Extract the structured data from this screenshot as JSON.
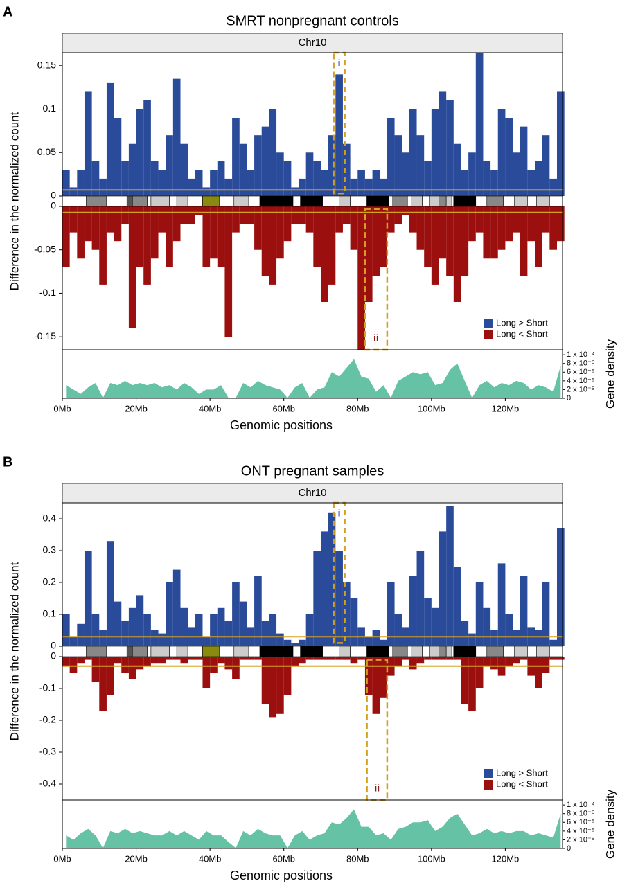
{
  "chart_data": [
    {
      "type": "bar",
      "panel": "A",
      "title": "SMRT nonpregnant controls",
      "strip": "Chr10",
      "y_label": "Difference in the normalized count",
      "x_label": "Genomic positions",
      "xlim": [
        0,
        135.5
      ],
      "xticks": [
        {
          "value": 0,
          "label": "0Mb"
        },
        {
          "value": 20,
          "label": "20Mb"
        },
        {
          "value": 40,
          "label": "40Mb"
        },
        {
          "value": 60,
          "label": "60Mb"
        },
        {
          "value": 80,
          "label": "80Mb"
        },
        {
          "value": 100,
          "label": "100Mb"
        },
        {
          "value": 120,
          "label": "120Mb"
        }
      ],
      "ylim": [
        -0.165,
        0.165
      ],
      "yticks": [
        0.15,
        0.1,
        0.05,
        0,
        -0.05,
        -0.1,
        -0.15
      ],
      "thresholds": [
        0.007,
        -0.007
      ],
      "threshold_color": "#d4a020",
      "x": [
        0,
        2,
        4,
        6,
        8,
        10,
        12,
        14,
        16,
        18,
        20,
        22,
        24,
        26,
        28,
        30,
        32,
        34,
        36,
        38,
        40,
        42,
        44,
        46,
        48,
        50,
        52,
        54,
        56,
        58,
        60,
        62,
        64,
        66,
        68,
        70,
        72,
        74,
        76,
        78,
        80,
        82,
        84,
        86,
        88,
        90,
        92,
        94,
        96,
        98,
        100,
        102,
        104,
        106,
        108,
        110,
        112,
        114,
        116,
        118,
        120,
        122,
        124,
        126,
        128,
        130,
        132,
        134
      ],
      "series": [
        {
          "name": "Long > Short",
          "color": "#2a4a9a",
          "values": [
            0.03,
            0.01,
            0.03,
            0.12,
            0.04,
            0.02,
            0.13,
            0.09,
            0.04,
            0.06,
            0.1,
            0.11,
            0.04,
            0.03,
            0.07,
            0.135,
            0.06,
            0.02,
            0.03,
            0.01,
            0.03,
            0.04,
            0.02,
            0.09,
            0.06,
            0.03,
            0.07,
            0.08,
            0.1,
            0.05,
            0.04,
            0.01,
            0.02,
            0.05,
            0.04,
            0.03,
            0.07,
            0.14,
            0.06,
            0.02,
            0.03,
            0.02,
            0.03,
            0.02,
            0.09,
            0.07,
            0.05,
            0.1,
            0.07,
            0.04,
            0.1,
            0.12,
            0.11,
            0.06,
            0.03,
            0.05,
            0.165,
            0.04,
            0.03,
            0.1,
            0.09,
            0.05,
            0.08,
            0.03,
            0.04,
            0.07,
            0.02,
            0.12
          ]
        },
        {
          "name": "Long < Short",
          "color": "#9b0f0f",
          "values": [
            -0.07,
            -0.03,
            -0.06,
            -0.04,
            -0.05,
            -0.09,
            -0.03,
            -0.04,
            -0.02,
            -0.14,
            -0.07,
            -0.09,
            -0.06,
            -0.03,
            -0.07,
            -0.04,
            -0.02,
            -0.02,
            -0.01,
            -0.07,
            -0.06,
            -0.07,
            -0.15,
            -0.03,
            -0.02,
            -0.02,
            -0.05,
            -0.08,
            -0.09,
            -0.06,
            -0.04,
            -0.02,
            -0.02,
            -0.03,
            -0.07,
            -0.11,
            -0.09,
            -0.03,
            -0.02,
            -0.05,
            -0.165,
            -0.11,
            -0.08,
            -0.07,
            -0.03,
            -0.02,
            -0.01,
            -0.03,
            -0.05,
            -0.07,
            -0.09,
            -0.06,
            -0.08,
            -0.11,
            -0.08,
            -0.04,
            -0.03,
            -0.06,
            -0.06,
            -0.05,
            -0.04,
            -0.03,
            -0.08,
            -0.04,
            -0.07,
            -0.03,
            -0.05,
            -0.04
          ]
        }
      ],
      "highlights": [
        {
          "label": "i",
          "color": "#2233aa",
          "xlim": [
            73.5,
            76.5
          ],
          "ylim": [
            0.003,
            0.165
          ]
        },
        {
          "label": "ii",
          "color": "#8b1a1a",
          "xlim": [
            82,
            88
          ],
          "ylim": [
            -0.003,
            -0.165
          ]
        }
      ],
      "density": {
        "label": "Gene density",
        "color": "#66c2a5",
        "ylim": [
          0,
          0.000105
        ],
        "yticks": [
          0,
          {
            "value": 2e-05,
            "label": "2 x 10⁻⁵"
          },
          {
            "value": 4e-05,
            "label": "4 x 10⁻⁵"
          },
          {
            "value": 6e-05,
            "label": "6 x 10⁻⁵"
          },
          {
            "value": 8e-05,
            "label": "8 x 10⁻⁵"
          },
          {
            "value": 0.0001,
            "label": "1 x 10⁻⁴"
          }
        ],
        "values": [
          3e-05,
          2e-05,
          1e-05,
          2.5e-05,
          3.5e-05,
          1e-06,
          3.5e-05,
          3e-05,
          4e-05,
          3e-05,
          3.5e-05,
          3e-05,
          3.5e-05,
          2.5e-05,
          3e-05,
          2e-05,
          3.5e-05,
          2.5e-05,
          1e-05,
          2e-05,
          2e-05,
          3e-05,
          1e-06,
          1e-06,
          3.5e-05,
          2.5e-05,
          4e-05,
          3e-05,
          2.5e-05,
          2e-05,
          1e-06,
          2.5e-05,
          3.5e-05,
          1e-06,
          2e-05,
          2.5e-05,
          6e-05,
          5e-05,
          7e-05,
          9e-05,
          5e-05,
          4.5e-05,
          1.5e-05,
          3e-05,
          1e-06,
          4e-05,
          5e-05,
          6e-05,
          5.5e-05,
          6e-05,
          3e-05,
          3.5e-05,
          6.5e-05,
          8e-05,
          4e-05,
          1e-06,
          3e-05,
          4e-05,
          2.5e-05,
          3.5e-05,
          3e-05,
          4e-05,
          3.5e-05,
          2e-05,
          3e-05,
          2.5e-05,
          1.5e-05,
          7.5e-05
        ]
      }
    },
    {
      "type": "bar",
      "panel": "B",
      "title": "ONT pregnant samples",
      "strip": "Chr10",
      "y_label": "Difference in the normalized count",
      "x_label": "Genomic positions",
      "xlim": [
        0,
        135.5
      ],
      "xticks": [
        {
          "value": 0,
          "label": "0Mb"
        },
        {
          "value": 20,
          "label": "20Mb"
        },
        {
          "value": 40,
          "label": "40Mb"
        },
        {
          "value": 60,
          "label": "60Mb"
        },
        {
          "value": 80,
          "label": "80Mb"
        },
        {
          "value": 100,
          "label": "100Mb"
        },
        {
          "value": 120,
          "label": "120Mb"
        }
      ],
      "ylim": [
        -0.45,
        0.45
      ],
      "yticks": [
        0.4,
        0.3,
        0.2,
        0.1,
        0,
        -0.1,
        -0.2,
        -0.3,
        -0.4
      ],
      "thresholds": [
        0.03,
        -0.03
      ],
      "threshold_color": "#d4a020",
      "x": [
        0,
        2,
        4,
        6,
        8,
        10,
        12,
        14,
        16,
        18,
        20,
        22,
        24,
        26,
        28,
        30,
        32,
        34,
        36,
        38,
        40,
        42,
        44,
        46,
        48,
        50,
        52,
        54,
        56,
        58,
        60,
        62,
        64,
        66,
        68,
        70,
        72,
        74,
        76,
        78,
        80,
        82,
        84,
        86,
        88,
        90,
        92,
        94,
        96,
        98,
        100,
        102,
        104,
        106,
        108,
        110,
        112,
        114,
        116,
        118,
        120,
        122,
        124,
        126,
        128,
        130,
        132,
        134
      ],
      "series": [
        {
          "name": "Long > Short",
          "color": "#2a4a9a",
          "values": [
            0.1,
            0.03,
            0.07,
            0.3,
            0.1,
            0.05,
            0.33,
            0.14,
            0.08,
            0.12,
            0.16,
            0.1,
            0.05,
            0.04,
            0.2,
            0.24,
            0.12,
            0.06,
            0.1,
            0.03,
            0.1,
            0.12,
            0.08,
            0.2,
            0.14,
            0.06,
            0.22,
            0.08,
            0.1,
            0.04,
            0.02,
            0.01,
            0.02,
            0.1,
            0.3,
            0.36,
            0.42,
            0.3,
            0.2,
            0.15,
            0.06,
            0.03,
            0.05,
            0.02,
            0.2,
            0.1,
            0.06,
            0.22,
            0.3,
            0.15,
            0.12,
            0.36,
            0.44,
            0.25,
            0.08,
            0.04,
            0.2,
            0.12,
            0.05,
            0.26,
            0.1,
            0.05,
            0.22,
            0.06,
            0.05,
            0.2,
            0.02,
            0.37
          ]
        },
        {
          "name": "Long < Short",
          "color": "#9b0f0f",
          "values": [
            -0.03,
            -0.05,
            -0.02,
            -0.01,
            -0.08,
            -0.17,
            -0.12,
            -0.02,
            -0.05,
            -0.07,
            -0.04,
            -0.03,
            -0.02,
            -0.02,
            -0.01,
            -0.01,
            -0.02,
            -0.01,
            -0.01,
            -0.1,
            -0.05,
            -0.02,
            -0.04,
            -0.07,
            -0.01,
            -0.01,
            -0.01,
            -0.15,
            -0.19,
            -0.18,
            -0.12,
            -0.03,
            -0.02,
            -0.01,
            -0.01,
            -0.01,
            -0.01,
            -0.01,
            -0.01,
            -0.02,
            -0.01,
            -0.12,
            -0.18,
            -0.13,
            -0.06,
            -0.03,
            -0.01,
            -0.04,
            -0.02,
            -0.01,
            -0.01,
            -0.01,
            -0.01,
            -0.01,
            -0.15,
            -0.17,
            -0.1,
            -0.03,
            -0.04,
            -0.06,
            -0.03,
            -0.02,
            -0.01,
            -0.06,
            -0.1,
            -0.05,
            -0.01,
            -0.01
          ]
        }
      ],
      "highlights": [
        {
          "label": "i",
          "color": "#2233aa",
          "xlim": [
            73.5,
            76.5
          ],
          "ylim": [
            0.01,
            0.45
          ]
        },
        {
          "label": "ii",
          "color": "#8b1a1a",
          "xlim": [
            82.5,
            88
          ],
          "ylim": [
            -0.01,
            -0.45
          ]
        }
      ],
      "density": {
        "label": "Gene density",
        "color": "#66c2a5",
        "ylim": [
          0,
          0.000105
        ],
        "yticks": [
          0,
          {
            "value": 2e-05,
            "label": "2 x 10⁻⁵"
          },
          {
            "value": 4e-05,
            "label": "4 x 10⁻⁵"
          },
          {
            "value": 6e-05,
            "label": "6 x 10⁻⁵"
          },
          {
            "value": 8e-05,
            "label": "8 x 10⁻⁵"
          },
          {
            "value": 0.0001,
            "label": "1 x 10⁻⁴"
          }
        ],
        "values": [
          3e-05,
          2e-05,
          3.5e-05,
          4.5e-05,
          3e-05,
          1e-06,
          4e-05,
          3.5e-05,
          4.5e-05,
          3.5e-05,
          4e-05,
          3.5e-05,
          3e-05,
          3e-05,
          4e-05,
          3e-05,
          4e-05,
          3e-05,
          2e-05,
          4e-05,
          3e-05,
          3e-05,
          1.5e-05,
          1e-06,
          4e-05,
          3e-05,
          4.5e-05,
          3.5e-05,
          3e-05,
          3e-05,
          1e-06,
          3e-05,
          4e-05,
          2e-05,
          3e-05,
          3.5e-05,
          6e-05,
          5.5e-05,
          7e-05,
          9e-05,
          5e-05,
          5e-05,
          3e-05,
          3.5e-05,
          2e-05,
          4.5e-05,
          5e-05,
          6e-05,
          6e-05,
          6.5e-05,
          4e-05,
          5e-05,
          7e-05,
          8e-05,
          5.5e-05,
          3e-05,
          3.5e-05,
          4.5e-05,
          3.5e-05,
          4e-05,
          3.5e-05,
          4e-05,
          4e-05,
          3e-05,
          3.5e-05,
          3e-05,
          2.5e-05,
          8e-05
        ]
      }
    }
  ],
  "ideogram": {
    "bands": [
      [
        0,
        6.5,
        "#ffffff"
      ],
      [
        6.5,
        12,
        "#888888"
      ],
      [
        12,
        17.5,
        "#ffffff"
      ],
      [
        17.5,
        19,
        "#555555"
      ],
      [
        19,
        23,
        "#888888"
      ],
      [
        23,
        24,
        "#ffffff"
      ],
      [
        24,
        29,
        "#cccccc"
      ],
      [
        29,
        31,
        "#ffffff"
      ],
      [
        31,
        34,
        "#cccccc"
      ],
      [
        34,
        38,
        "#ffffff"
      ],
      [
        38,
        42.5,
        "#8a8a10"
      ],
      [
        42.5,
        46.5,
        "#ffffff"
      ],
      [
        46.5,
        50.5,
        "#cccccc"
      ],
      [
        50.5,
        53.5,
        "#ffffff"
      ],
      [
        53.5,
        62.5,
        "#000000"
      ],
      [
        62.5,
        64.5,
        "#ffffff"
      ],
      [
        64.5,
        70.5,
        "#000000"
      ],
      [
        70.5,
        75,
        "#ffffff"
      ],
      [
        75,
        78,
        "#cccccc"
      ],
      [
        78,
        82.5,
        "#ffffff"
      ],
      [
        82.5,
        88.5,
        "#000000"
      ],
      [
        88.5,
        89.5,
        "#ffffff"
      ],
      [
        89.5,
        93.5,
        "#888888"
      ],
      [
        93.5,
        94.5,
        "#ffffff"
      ],
      [
        94.5,
        97.5,
        "#cccccc"
      ],
      [
        97.5,
        99.5,
        "#ffffff"
      ],
      [
        99.5,
        102,
        "#cccccc"
      ],
      [
        102,
        104,
        "#888888"
      ],
      [
        104,
        105.5,
        "#cccccc"
      ],
      [
        105.5,
        106,
        "#ffffff"
      ],
      [
        106,
        112,
        "#000000"
      ],
      [
        112,
        115,
        "#ffffff"
      ],
      [
        115,
        119.5,
        "#888888"
      ],
      [
        119.5,
        122.5,
        "#ffffff"
      ],
      [
        122.5,
        126,
        "#cccccc"
      ],
      [
        126,
        128.5,
        "#ffffff"
      ],
      [
        128.5,
        132,
        "#cccccc"
      ],
      [
        132,
        135.5,
        "#ffffff"
      ]
    ]
  }
}
